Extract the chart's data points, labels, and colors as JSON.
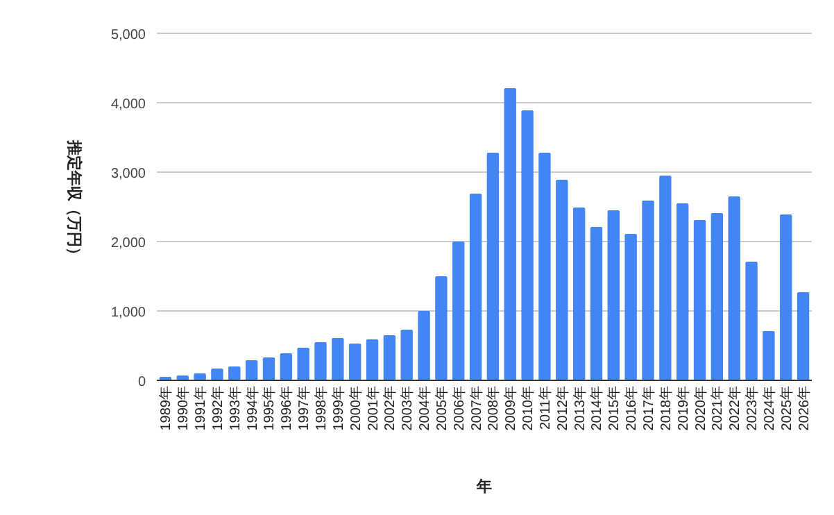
{
  "chart_data": {
    "type": "bar",
    "xlabel": "年",
    "ylabel": "推定年収（万円）",
    "categories": [
      "1989年",
      "1990年",
      "1991年",
      "1992年",
      "1993年",
      "1994年",
      "1995年",
      "1996年",
      "1997年",
      "1998年",
      "1999年",
      "2000年",
      "2001年",
      "2002年",
      "2003年",
      "2004年",
      "2005年",
      "2006年",
      "2007年",
      "2008年",
      "2009年",
      "2010年",
      "2011年",
      "2012年",
      "2013年",
      "2014年",
      "2015年",
      "2016年",
      "2017年",
      "2018年",
      "2019年",
      "2020年",
      "2021年",
      "2022年",
      "2023年",
      "2024年",
      "2025年",
      "2026年"
    ],
    "values": [
      50,
      70,
      100,
      170,
      200,
      290,
      330,
      390,
      470,
      550,
      610,
      530,
      590,
      650,
      730,
      1000,
      1500,
      2000,
      2690,
      3280,
      4210,
      3890,
      3280,
      2890,
      2490,
      2210,
      2450,
      2110,
      2590,
      2950,
      2550,
      2310,
      2410,
      2650,
      1710,
      710,
      2390,
      1270
    ],
    "color": "#4285f4",
    "ylim": [
      0,
      5000
    ],
    "yticks": [
      0,
      {
        "value": 1000,
        "label": "1,000"
      },
      {
        "value": 2000,
        "label": "2,000"
      },
      {
        "value": 3000,
        "label": "3,000"
      },
      {
        "value": 4000,
        "label": "4,000"
      },
      {
        "value": 5000,
        "label": "5,000"
      }
    ],
    "grid": "y"
  }
}
